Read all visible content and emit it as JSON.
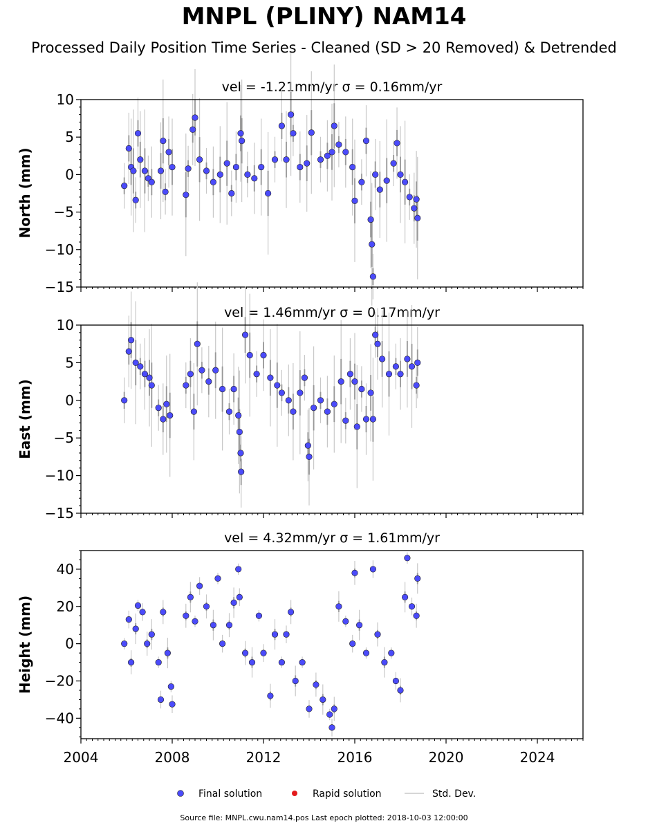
{
  "header": {
    "title": "MNPL (PLINY) NAM14",
    "subtitle": "Processed Daily Position Time Series - Cleaned (SD > 20 Removed) & Detrended"
  },
  "chart_data": {
    "type": "scatter",
    "xlim": [
      2004,
      2026
    ],
    "x_ticks": [
      "2004",
      "2008",
      "2012",
      "2016",
      "2020",
      "2024"
    ],
    "x_minor_step": 0.25,
    "colors": {
      "final": "#4b4bfa",
      "rapid": "#e31a1c",
      "std": "#c8c8c8",
      "band": "#777777"
    },
    "panels": [
      {
        "id": "north",
        "ylabel": "North (mm)",
        "title": "vel = -1.21mm/yr   σ = 0.16mm/yr",
        "ylim": [
          -15,
          10
        ],
        "y_ticks": [
          10,
          5,
          0,
          -5,
          -10,
          -15
        ],
        "y_tick_labels": [
          "10",
          "5",
          "0",
          "−5",
          "−10",
          "−15"
        ],
        "y_minor_step": 1,
        "points": [
          [
            2005.9,
            -1.5
          ],
          [
            2006.1,
            3.5
          ],
          [
            2006.2,
            1.0
          ],
          [
            2006.3,
            0.5
          ],
          [
            2006.4,
            -3.4
          ],
          [
            2006.5,
            5.5
          ],
          [
            2006.6,
            2.0
          ],
          [
            2006.8,
            0.5
          ],
          [
            2006.95,
            -0.5
          ],
          [
            2007.1,
            -1.0
          ],
          [
            2007.5,
            0.5
          ],
          [
            2007.6,
            4.5
          ],
          [
            2007.7,
            -2.3
          ],
          [
            2007.85,
            3.0
          ],
          [
            2008.0,
            1.0
          ],
          [
            2008.6,
            -2.7
          ],
          [
            2008.7,
            0.8
          ],
          [
            2008.9,
            6.0
          ],
          [
            2009.0,
            7.6
          ],
          [
            2009.2,
            2.0
          ],
          [
            2009.5,
            0.5
          ],
          [
            2009.8,
            -1.0
          ],
          [
            2010.1,
            0.0
          ],
          [
            2010.4,
            1.5
          ],
          [
            2010.6,
            -2.5
          ],
          [
            2010.8,
            1.0
          ],
          [
            2011.0,
            5.5
          ],
          [
            2011.05,
            4.5
          ],
          [
            2011.3,
            0.0
          ],
          [
            2011.6,
            -0.5
          ],
          [
            2011.9,
            1.0
          ],
          [
            2012.2,
            -2.5
          ],
          [
            2012.5,
            2.0
          ],
          [
            2012.8,
            6.5
          ],
          [
            2013.0,
            2.0
          ],
          [
            2013.2,
            8.0
          ],
          [
            2013.3,
            5.5
          ],
          [
            2013.6,
            1.0
          ],
          [
            2013.9,
            1.5
          ],
          [
            2014.1,
            5.6
          ],
          [
            2014.5,
            2.0
          ],
          [
            2014.8,
            2.5
          ],
          [
            2015.0,
            3.0
          ],
          [
            2015.1,
            6.5
          ],
          [
            2015.3,
            4.0
          ],
          [
            2015.6,
            3.0
          ],
          [
            2015.9,
            1.0
          ],
          [
            2016.0,
            -3.5
          ],
          [
            2016.3,
            -1.0
          ],
          [
            2016.5,
            4.5
          ],
          [
            2016.7,
            -6.0
          ],
          [
            2016.75,
            -9.3
          ],
          [
            2016.8,
            -13.6
          ],
          [
            2016.9,
            0.0
          ],
          [
            2017.1,
            -2.0
          ],
          [
            2017.4,
            -0.8
          ],
          [
            2017.7,
            1.5
          ],
          [
            2017.85,
            4.2
          ],
          [
            2018.0,
            0.0
          ],
          [
            2018.2,
            -1.0
          ],
          [
            2018.4,
            -3.0
          ],
          [
            2018.6,
            -4.5
          ],
          [
            2018.7,
            -3.3
          ],
          [
            2018.75,
            -5.8
          ]
        ]
      },
      {
        "id": "east",
        "ylabel": "East (mm)",
        "title": "vel = 1.46mm/yr   σ = 0.17mm/yr",
        "ylim": [
          -15,
          10
        ],
        "y_ticks": [
          10,
          5,
          0,
          -5,
          -10,
          -15
        ],
        "y_tick_labels": [
          "10",
          "5",
          "0",
          "−5",
          "−10",
          "−15"
        ],
        "y_minor_step": 1,
        "points": [
          [
            2005.9,
            0.0
          ],
          [
            2006.1,
            6.5
          ],
          [
            2006.2,
            8.0
          ],
          [
            2006.4,
            5.0
          ],
          [
            2006.6,
            4.5
          ],
          [
            2006.8,
            3.5
          ],
          [
            2007.0,
            3.0
          ],
          [
            2007.1,
            2.0
          ],
          [
            2007.4,
            -1.0
          ],
          [
            2007.6,
            -2.5
          ],
          [
            2007.75,
            -0.5
          ],
          [
            2007.9,
            -2.0
          ],
          [
            2008.6,
            2.0
          ],
          [
            2008.8,
            3.5
          ],
          [
            2008.95,
            -1.5
          ],
          [
            2009.1,
            7.5
          ],
          [
            2009.3,
            4.0
          ],
          [
            2009.6,
            2.5
          ],
          [
            2009.9,
            4.0
          ],
          [
            2010.2,
            1.5
          ],
          [
            2010.5,
            -1.5
          ],
          [
            2010.7,
            1.5
          ],
          [
            2010.9,
            -2.0
          ],
          [
            2010.95,
            -4.2
          ],
          [
            2011.0,
            -7.0
          ],
          [
            2011.02,
            -9.5
          ],
          [
            2011.2,
            8.7
          ],
          [
            2011.4,
            6.0
          ],
          [
            2011.7,
            3.5
          ],
          [
            2012.0,
            6.0
          ],
          [
            2012.3,
            3.0
          ],
          [
            2012.6,
            2.0
          ],
          [
            2012.8,
            1.0
          ],
          [
            2013.1,
            0.0
          ],
          [
            2013.3,
            -1.5
          ],
          [
            2013.6,
            1.0
          ],
          [
            2013.8,
            3.0
          ],
          [
            2013.95,
            -6.0
          ],
          [
            2014.0,
            -7.5
          ],
          [
            2014.2,
            -1.0
          ],
          [
            2014.5,
            0.0
          ],
          [
            2014.8,
            -1.5
          ],
          [
            2015.1,
            -0.5
          ],
          [
            2015.4,
            2.5
          ],
          [
            2015.6,
            -2.7
          ],
          [
            2015.8,
            3.5
          ],
          [
            2016.0,
            2.5
          ],
          [
            2016.1,
            -3.5
          ],
          [
            2016.3,
            1.5
          ],
          [
            2016.5,
            -2.5
          ],
          [
            2016.7,
            1.0
          ],
          [
            2016.8,
            -2.5
          ],
          [
            2016.9,
            8.7
          ],
          [
            2017.0,
            7.5
          ],
          [
            2017.2,
            5.5
          ],
          [
            2017.5,
            3.5
          ],
          [
            2017.8,
            4.5
          ],
          [
            2018.0,
            3.5
          ],
          [
            2018.3,
            5.5
          ],
          [
            2018.5,
            4.5
          ],
          [
            2018.7,
            2.0
          ],
          [
            2018.75,
            5.0
          ]
        ]
      },
      {
        "id": "height",
        "ylabel": "Height (mm)",
        "title": "vel = 4.32mm/yr   σ = 1.61mm/yr",
        "ylim": [
          -51,
          50
        ],
        "y_ticks": [
          40,
          20,
          0,
          -20,
          -40
        ],
        "y_tick_labels": [
          "40",
          "20",
          "0",
          "−20",
          "−40"
        ],
        "y_minor_step": 5,
        "points": [
          [
            2005.9,
            0.0
          ],
          [
            2006.1,
            13.0
          ],
          [
            2006.2,
            -10.0
          ],
          [
            2006.4,
            8.0
          ],
          [
            2006.5,
            20.5
          ],
          [
            2006.7,
            17.0
          ],
          [
            2006.9,
            0.0
          ],
          [
            2007.1,
            5.0
          ],
          [
            2007.4,
            -10.0
          ],
          [
            2007.5,
            -30.0
          ],
          [
            2007.6,
            17.0
          ],
          [
            2007.8,
            -5.0
          ],
          [
            2007.95,
            -23.0
          ],
          [
            2008.0,
            -32.5
          ],
          [
            2008.6,
            15.0
          ],
          [
            2008.8,
            25.0
          ],
          [
            2009.0,
            12.0
          ],
          [
            2009.2,
            31.0
          ],
          [
            2009.5,
            20.0
          ],
          [
            2009.8,
            10.0
          ],
          [
            2010.0,
            35.0
          ],
          [
            2010.2,
            0.0
          ],
          [
            2010.5,
            10.0
          ],
          [
            2010.7,
            22.0
          ],
          [
            2010.9,
            40.0
          ],
          [
            2010.95,
            25.0
          ],
          [
            2011.2,
            -5.0
          ],
          [
            2011.5,
            -10.0
          ],
          [
            2011.8,
            15.0
          ],
          [
            2012.0,
            -5.0
          ],
          [
            2012.3,
            -28.0
          ],
          [
            2012.5,
            5.0
          ],
          [
            2012.8,
            -10.0
          ],
          [
            2013.0,
            5.0
          ],
          [
            2013.2,
            17.0
          ],
          [
            2013.4,
            -20.0
          ],
          [
            2013.7,
            -10.0
          ],
          [
            2014.0,
            -35.0
          ],
          [
            2014.3,
            -22.0
          ],
          [
            2014.6,
            -30.0
          ],
          [
            2014.9,
            -38.0
          ],
          [
            2015.0,
            -45.0
          ],
          [
            2015.1,
            -35.0
          ],
          [
            2015.3,
            20.0
          ],
          [
            2015.6,
            12.0
          ],
          [
            2015.9,
            0.0
          ],
          [
            2016.0,
            38.0
          ],
          [
            2016.2,
            10.0
          ],
          [
            2016.5,
            -5.0
          ],
          [
            2016.8,
            40.0
          ],
          [
            2017.0,
            5.0
          ],
          [
            2017.3,
            -10.0
          ],
          [
            2017.6,
            -5.0
          ],
          [
            2017.8,
            -20.0
          ],
          [
            2018.0,
            -25.0
          ],
          [
            2018.2,
            25.0
          ],
          [
            2018.3,
            46.0
          ],
          [
            2018.5,
            20.0
          ],
          [
            2018.7,
            15.0
          ],
          [
            2018.75,
            35.0
          ]
        ]
      }
    ],
    "legend": {
      "final": "Final solution",
      "rapid": "Rapid solution",
      "std": "Std. Dev."
    }
  },
  "footer": {
    "source": "Source file: MNPL.cwu.nam14.pos  Last epoch plotted: 2018-10-03 12:00:00"
  }
}
